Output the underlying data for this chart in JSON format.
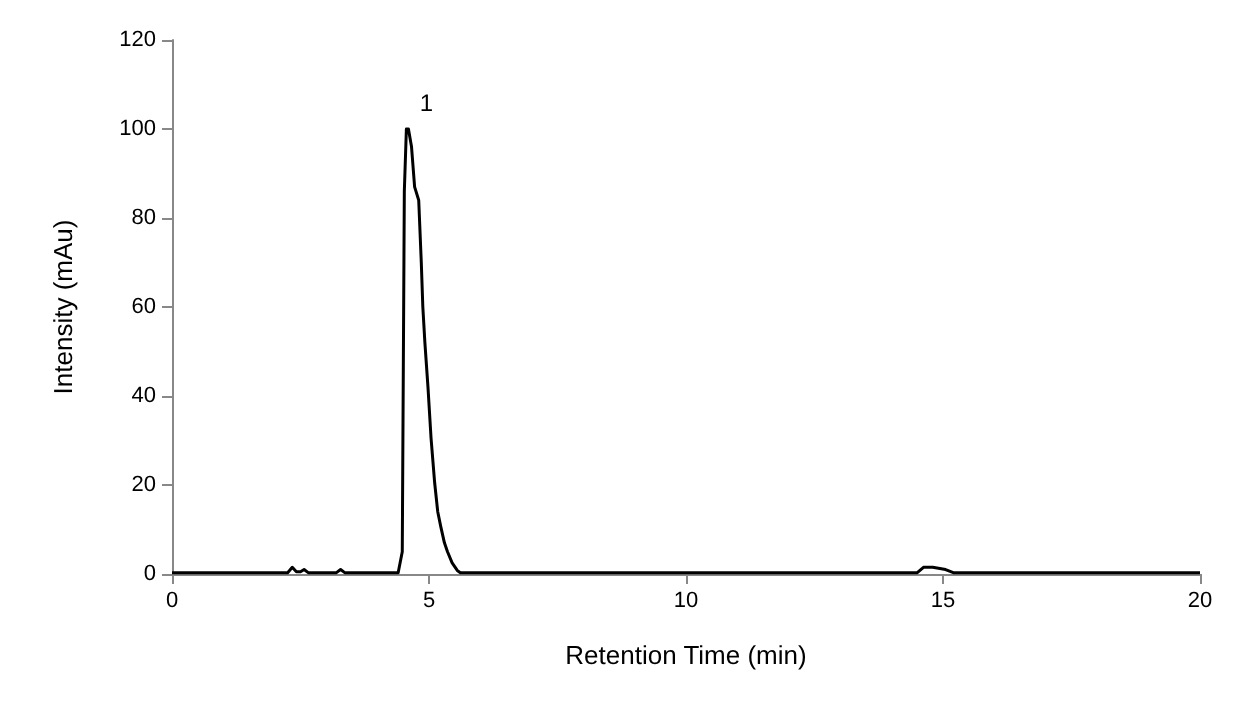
{
  "chart_data": {
    "type": "line",
    "xlabel": "Retention Time (min)",
    "ylabel": "Intensity (mAu)",
    "x": [
      0,
      2.25,
      2.34,
      2.42,
      2.5,
      2.57,
      2.65,
      2.8,
      3.2,
      3.28,
      3.36,
      3.5,
      4.4,
      4.48,
      4.52,
      4.56,
      4.6,
      4.66,
      4.72,
      4.8,
      4.85,
      4.88,
      4.92,
      4.98,
      5.04,
      5.11,
      5.17,
      5.23,
      5.3,
      5.36,
      5.45,
      5.55,
      5.61,
      6,
      14.5,
      14.62,
      14.8,
      15.05,
      15.2,
      20
    ],
    "values": [
      0.3,
      0.3,
      1.5,
      0.5,
      0.5,
      1,
      0.3,
      0.3,
      0.3,
      1,
      0.3,
      0.3,
      0.3,
      5,
      86,
      100,
      100,
      96,
      87,
      84,
      70,
      60,
      52,
      42,
      30.5,
      20.5,
      14,
      10.6,
      7,
      5,
      2.5,
      0.8,
      0.3,
      0.3,
      0.3,
      1.5,
      1.5,
      1,
      0.3,
      0.3
    ],
    "color": "#000000",
    "xlim": [
      0,
      20
    ],
    "xticks": [
      0,
      5,
      10,
      15,
      20
    ],
    "ylim": [
      0,
      120
    ],
    "yticks": [
      0,
      20,
      40,
      60,
      80,
      100,
      120
    ],
    "annotations": [
      "1"
    ],
    "grid": false,
    "marker": "none",
    "line_style": "solid"
  }
}
